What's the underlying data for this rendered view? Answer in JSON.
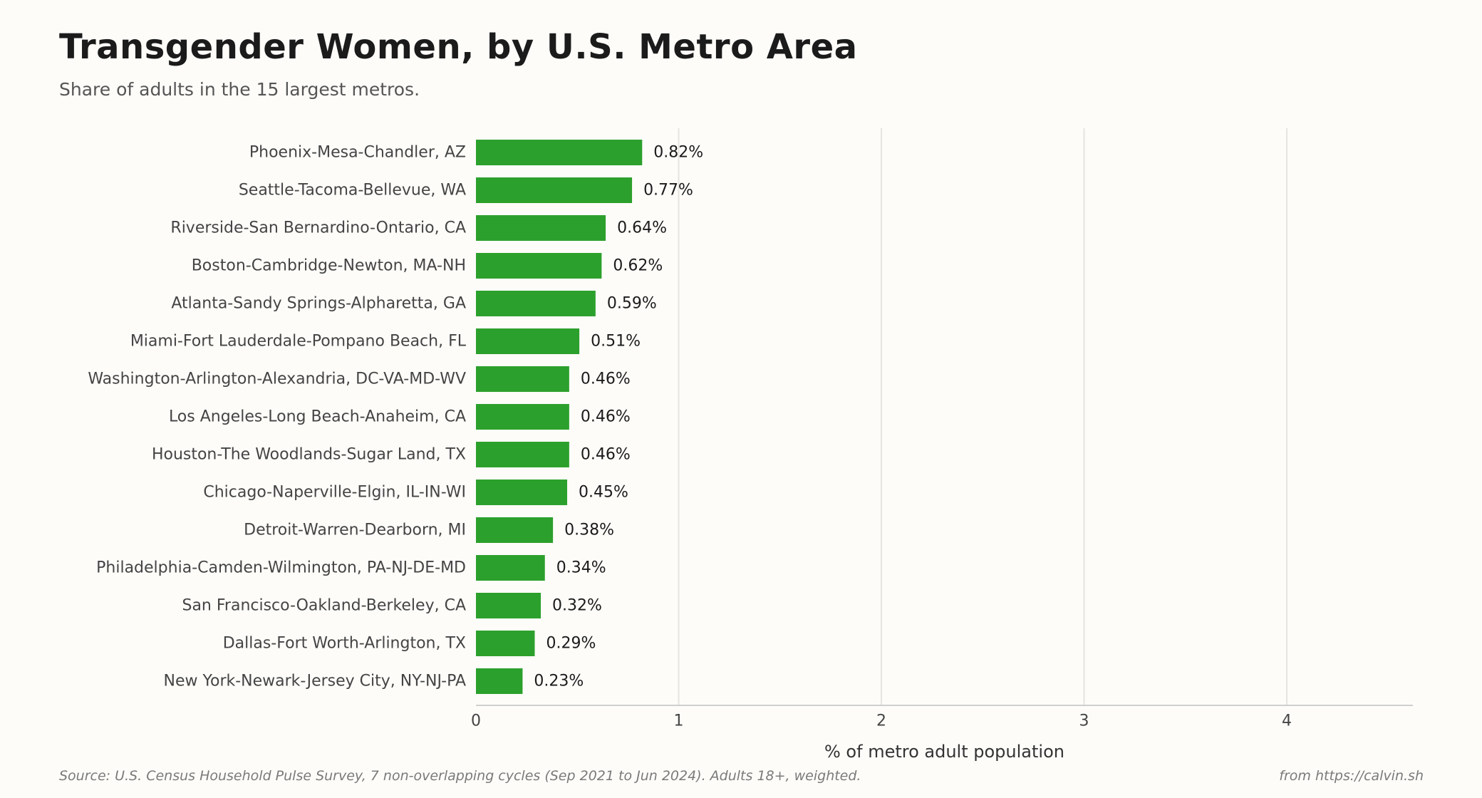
{
  "header": {
    "title": "Transgender Women, by U.S. Metro Area",
    "subtitle": "Share of adults in the 15 largest metros."
  },
  "footer": {
    "source": "Source: U.S. Census Household Pulse Survey, 7 non-overlapping cycles (Sep 2021 to Jun 2024). Adults 18+, weighted.",
    "credit": "from https://calvin.sh"
  },
  "colors": {
    "bar": "#2ca02c",
    "grid": "#e6e4df",
    "axis": "#cfcfcf",
    "label_text": "#444444",
    "value_text": "#1b1b1b",
    "background": "#fdfcf9"
  },
  "chart_data": {
    "type": "bar",
    "orientation": "horizontal",
    "title": "Transgender Women, by U.S. Metro Area",
    "subtitle": "Share of adults in the 15 largest metros.",
    "xlabel": "% of metro adult population",
    "ylabel": "",
    "xlim": [
      0,
      4.6
    ],
    "xticks": [
      0,
      1,
      2,
      3,
      4
    ],
    "grid": true,
    "legend": "none",
    "categories": [
      "Phoenix-Mesa-Chandler, AZ",
      "Seattle-Tacoma-Bellevue, WA",
      "Riverside-San Bernardino-Ontario, CA",
      "Boston-Cambridge-Newton, MA-NH",
      "Atlanta-Sandy Springs-Alpharetta, GA",
      "Miami-Fort Lauderdale-Pompano Beach, FL",
      "Washington-Arlington-Alexandria, DC-VA-MD-WV",
      "Los Angeles-Long Beach-Anaheim, CA",
      "Houston-The Woodlands-Sugar Land, TX",
      "Chicago-Naperville-Elgin, IL-IN-WI",
      "Detroit-Warren-Dearborn, MI",
      "Philadelphia-Camden-Wilmington, PA-NJ-DE-MD",
      "San Francisco-Oakland-Berkeley, CA",
      "Dallas-Fort Worth-Arlington, TX",
      "New York-Newark-Jersey City, NY-NJ-PA"
    ],
    "values": [
      0.82,
      0.77,
      0.64,
      0.62,
      0.59,
      0.51,
      0.46,
      0.46,
      0.46,
      0.45,
      0.38,
      0.34,
      0.32,
      0.29,
      0.23
    ],
    "value_labels": [
      "0.82%",
      "0.77%",
      "0.64%",
      "0.62%",
      "0.59%",
      "0.51%",
      "0.46%",
      "0.46%",
      "0.46%",
      "0.45%",
      "0.38%",
      "0.34%",
      "0.32%",
      "0.29%",
      "0.23%"
    ]
  }
}
